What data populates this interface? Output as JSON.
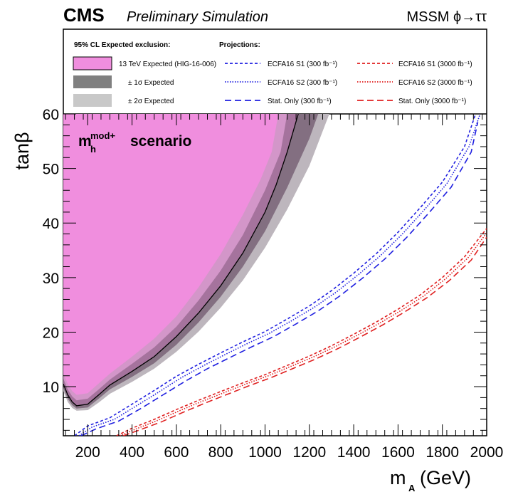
{
  "chart_data": {
    "type": "area",
    "header": {
      "experiment": "CMS",
      "status": "Preliminary Simulation",
      "process": "MSSM ϕ→ττ"
    },
    "scenario": {
      "base": "m",
      "sup": "mod+",
      "sub": "h",
      "text": "scenario"
    },
    "xlabel": {
      "main": "m",
      "sub": "A",
      "unit": "(GeV)"
    },
    "ylabel": "tanβ",
    "xlim": [
      90,
      2000
    ],
    "ylim": [
      1,
      60
    ],
    "xticks": [
      "200",
      "400",
      "600",
      "800",
      "1000",
      "1200",
      "1400",
      "1600",
      "1800",
      "2000"
    ],
    "xtick_values": [
      200,
      400,
      600,
      800,
      1000,
      1200,
      1400,
      1600,
      1800,
      2000
    ],
    "yticks": [
      "10",
      "20",
      "30",
      "40",
      "50",
      "60"
    ],
    "ytick_values": [
      10,
      20,
      30,
      40,
      50,
      60
    ],
    "legend": {
      "left_header": "95% CL Expected exclusion:",
      "right_header": "Projections:",
      "items": [
        {
          "label": "13 TeV Expected (HIG-16-006)",
          "style": "fill",
          "color": "#f08ede"
        },
        {
          "label": "± 1σ Expected",
          "style": "fill",
          "color": "#808080"
        },
        {
          "label": "± 2σ Expected",
          "style": "fill",
          "color": "#c8c8c8"
        },
        {
          "label": "ECFA16 S1 (300 fb⁻¹)",
          "style": "dashed",
          "color": "#1f1fe0"
        },
        {
          "label": "ECFA16 S2 (300 fb⁻¹)",
          "style": "dotted",
          "color": "#1f1fe0"
        },
        {
          "label": "Stat. Only (300 fb⁻¹)",
          "style": "longdash",
          "color": "#1f1fe0"
        },
        {
          "label": "ECFA16 S1 (3000 fb⁻¹)",
          "style": "dashed",
          "color": "#e02020"
        },
        {
          "label": "ECFA16 S2 (3000 fb⁻¹)",
          "style": "dotted",
          "color": "#e02020"
        },
        {
          "label": "Stat. Only (3000 fb⁻¹)",
          "style": "longdash",
          "color": "#e02020"
        }
      ]
    },
    "series": [
      {
        "name": "13 TeV Expected (HIG-16-006)",
        "color": "#000000",
        "fill": "#f08ede",
        "points": [
          [
            90,
            10.5
          ],
          [
            110,
            8.5
          ],
          [
            130,
            7.2
          ],
          [
            150,
            6.5
          ],
          [
            200,
            6.8
          ],
          [
            250,
            8.5
          ],
          [
            300,
            10.3
          ],
          [
            400,
            12.8
          ],
          [
            500,
            15.5
          ],
          [
            600,
            19.2
          ],
          [
            700,
            23.5
          ],
          [
            800,
            28.5
          ],
          [
            900,
            34.5
          ],
          [
            1000,
            42.0
          ],
          [
            1050,
            47.0
          ],
          [
            1100,
            53.0
          ],
          [
            1150,
            60.0
          ]
        ]
      },
      {
        "name": "± 1σ Expected band",
        "fill": "#808080",
        "lower": [
          [
            90,
            9.8
          ],
          [
            110,
            7.8
          ],
          [
            130,
            6.6
          ],
          [
            150,
            6.0
          ],
          [
            200,
            6.2
          ],
          [
            250,
            7.8
          ],
          [
            300,
            9.5
          ],
          [
            400,
            11.8
          ],
          [
            500,
            14.3
          ],
          [
            600,
            17.7
          ],
          [
            700,
            21.8
          ],
          [
            800,
            26.5
          ],
          [
            900,
            32.0
          ],
          [
            1000,
            38.5
          ],
          [
            1100,
            46.5
          ],
          [
            1200,
            55.5
          ],
          [
            1240,
            60.0
          ]
        ],
        "upper": [
          [
            90,
            11.5
          ],
          [
            110,
            9.5
          ],
          [
            130,
            8.2
          ],
          [
            150,
            7.5
          ],
          [
            200,
            7.8
          ],
          [
            250,
            9.5
          ],
          [
            300,
            11.3
          ],
          [
            400,
            14.2
          ],
          [
            500,
            17.2
          ],
          [
            600,
            21.0
          ],
          [
            700,
            25.8
          ],
          [
            800,
            31.3
          ],
          [
            900,
            37.8
          ],
          [
            1000,
            46.0
          ],
          [
            1070,
            53.0
          ],
          [
            1100,
            60.0
          ]
        ]
      },
      {
        "name": "± 2σ Expected band",
        "fill": "#c8c8c8",
        "lower": [
          [
            90,
            9.2
          ],
          [
            110,
            7.2
          ],
          [
            130,
            6.1
          ],
          [
            150,
            5.6
          ],
          [
            200,
            5.7
          ],
          [
            250,
            7.1
          ],
          [
            300,
            8.7
          ],
          [
            400,
            10.9
          ],
          [
            500,
            13.3
          ],
          [
            600,
            16.4
          ],
          [
            700,
            20.1
          ],
          [
            800,
            24.5
          ],
          [
            900,
            29.5
          ],
          [
            1000,
            35.5
          ],
          [
            1100,
            42.5
          ],
          [
            1200,
            50.5
          ],
          [
            1290,
            60.0
          ]
        ],
        "upper": [
          [
            90,
            12.5
          ],
          [
            110,
            10.5
          ],
          [
            130,
            9.2
          ],
          [
            150,
            8.5
          ],
          [
            200,
            8.8
          ],
          [
            250,
            10.6
          ],
          [
            300,
            12.4
          ],
          [
            400,
            15.5
          ],
          [
            500,
            18.8
          ],
          [
            600,
            22.9
          ],
          [
            700,
            28.2
          ],
          [
            800,
            34.3
          ],
          [
            900,
            41.5
          ],
          [
            980,
            48.0
          ],
          [
            1030,
            53.0
          ],
          [
            1060,
            60.0
          ]
        ]
      },
      {
        "name": "ECFA16 S1 (300 fb⁻¹)",
        "style": "dashed",
        "color": "#1f1fe0",
        "points": [
          [
            140,
            1.0
          ],
          [
            200,
            2.8
          ],
          [
            300,
            4.3
          ],
          [
            400,
            6.8
          ],
          [
            500,
            9.3
          ],
          [
            600,
            11.9
          ],
          [
            700,
            14.1
          ],
          [
            800,
            16.2
          ],
          [
            900,
            18.2
          ],
          [
            1000,
            20.1
          ],
          [
            1100,
            22.4
          ],
          [
            1200,
            24.8
          ],
          [
            1300,
            27.6
          ],
          [
            1400,
            30.8
          ],
          [
            1500,
            34.3
          ],
          [
            1600,
            38.3
          ],
          [
            1700,
            42.8
          ],
          [
            1800,
            47.5
          ],
          [
            1900,
            54.0
          ],
          [
            1950,
            60.0
          ]
        ]
      },
      {
        "name": "ECFA16 S2 (300 fb⁻¹)",
        "style": "dotted",
        "color": "#1f1fe0",
        "points": [
          [
            160,
            1.0
          ],
          [
            220,
            2.6
          ],
          [
            320,
            4.0
          ],
          [
            420,
            6.5
          ],
          [
            520,
            9.0
          ],
          [
            620,
            11.6
          ],
          [
            720,
            13.8
          ],
          [
            820,
            15.9
          ],
          [
            920,
            17.9
          ],
          [
            1020,
            19.8
          ],
          [
            1120,
            22.1
          ],
          [
            1220,
            24.5
          ],
          [
            1320,
            27.3
          ],
          [
            1420,
            30.5
          ],
          [
            1520,
            34.0
          ],
          [
            1620,
            38.0
          ],
          [
            1720,
            42.5
          ],
          [
            1820,
            47.2
          ],
          [
            1920,
            54.0
          ],
          [
            1970,
            60.0
          ]
        ]
      },
      {
        "name": "Stat. Only (300 fb⁻¹)",
        "style": "longdash",
        "color": "#1f1fe0",
        "points": [
          [
            170,
            1.0
          ],
          [
            240,
            2.3
          ],
          [
            340,
            3.7
          ],
          [
            440,
            6.0
          ],
          [
            540,
            8.5
          ],
          [
            640,
            11.0
          ],
          [
            740,
            13.3
          ],
          [
            840,
            15.3
          ],
          [
            940,
            17.3
          ],
          [
            1040,
            19.2
          ],
          [
            1140,
            21.5
          ],
          [
            1240,
            23.9
          ],
          [
            1340,
            26.7
          ],
          [
            1440,
            29.9
          ],
          [
            1540,
            33.4
          ],
          [
            1640,
            37.4
          ],
          [
            1740,
            41.9
          ],
          [
            1840,
            46.6
          ],
          [
            1930,
            53.0
          ],
          [
            1960,
            58.5
          ]
        ]
      },
      {
        "name": "ECFA16 S1 (3000 fb⁻¹)",
        "style": "dashed",
        "color": "#e02020",
        "points": [
          [
            330,
            1.0
          ],
          [
            400,
            2.4
          ],
          [
            500,
            4.0
          ],
          [
            600,
            5.8
          ],
          [
            700,
            7.5
          ],
          [
            800,
            9.1
          ],
          [
            900,
            10.7
          ],
          [
            1000,
            12.2
          ],
          [
            1100,
            13.9
          ],
          [
            1200,
            15.6
          ],
          [
            1300,
            17.5
          ],
          [
            1400,
            19.6
          ],
          [
            1500,
            21.8
          ],
          [
            1600,
            24.2
          ],
          [
            1700,
            26.8
          ],
          [
            1800,
            30.0
          ],
          [
            1900,
            33.8
          ],
          [
            2000,
            39.0
          ]
        ]
      },
      {
        "name": "ECFA16 S2 (3000 fb⁻¹)",
        "style": "dotted",
        "color": "#e02020",
        "points": [
          [
            345,
            1.0
          ],
          [
            415,
            2.2
          ],
          [
            515,
            3.8
          ],
          [
            615,
            5.6
          ],
          [
            715,
            7.3
          ],
          [
            815,
            8.9
          ],
          [
            915,
            10.5
          ],
          [
            1015,
            12.0
          ],
          [
            1115,
            13.7
          ],
          [
            1215,
            15.4
          ],
          [
            1315,
            17.3
          ],
          [
            1415,
            19.4
          ],
          [
            1515,
            21.6
          ],
          [
            1615,
            24.0
          ],
          [
            1715,
            26.6
          ],
          [
            1815,
            29.8
          ],
          [
            1915,
            33.6
          ],
          [
            2000,
            38.2
          ]
        ]
      },
      {
        "name": "Stat. Only (3000 fb⁻¹)",
        "style": "longdash",
        "color": "#e02020",
        "points": [
          [
            360,
            1.0
          ],
          [
            430,
            2.0
          ],
          [
            530,
            3.5
          ],
          [
            630,
            5.3
          ],
          [
            730,
            7.0
          ],
          [
            830,
            8.6
          ],
          [
            930,
            10.2
          ],
          [
            1030,
            11.7
          ],
          [
            1130,
            13.4
          ],
          [
            1230,
            15.1
          ],
          [
            1330,
            17.0
          ],
          [
            1430,
            19.1
          ],
          [
            1530,
            21.3
          ],
          [
            1630,
            23.7
          ],
          [
            1730,
            26.3
          ],
          [
            1830,
            29.4
          ],
          [
            1930,
            33.2
          ],
          [
            2000,
            37.4
          ]
        ]
      }
    ]
  }
}
